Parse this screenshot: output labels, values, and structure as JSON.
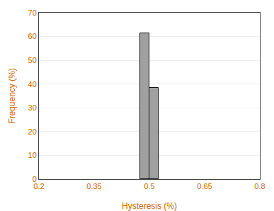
{
  "chart_data": {
    "type": "histogram",
    "bins": [
      0.475,
      0.5,
      0.525
    ],
    "values": [
      61.5,
      38.5
    ],
    "color": "#a0a0a0",
    "xlabel": "Hysteresis (%)",
    "ylabel": "Frequency (%)",
    "xlim": [
      0.2,
      0.8
    ],
    "xticks": [
      0.2,
      0.35,
      0.5,
      0.65,
      0.8
    ],
    "ylim": [
      0,
      70
    ],
    "yticks": [
      0,
      10,
      20,
      30,
      40,
      50,
      60,
      70
    ],
    "grid": true
  }
}
